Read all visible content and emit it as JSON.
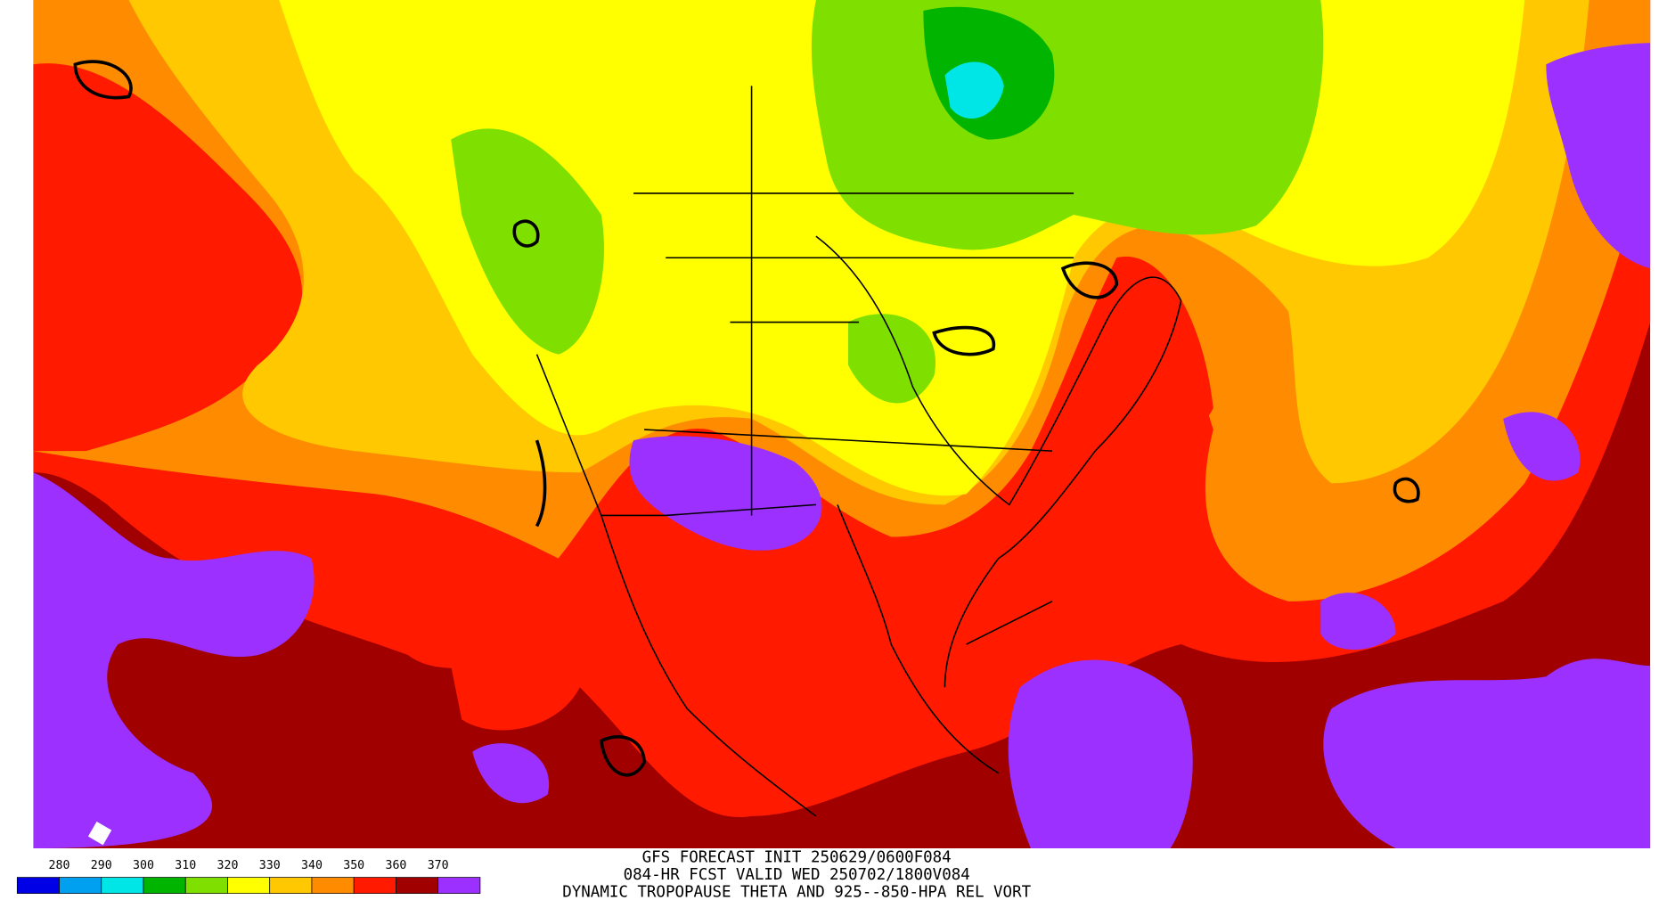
{
  "colorbar": {
    "labels": [
      280,
      290,
      300,
      310,
      320,
      330,
      340,
      350,
      360,
      370
    ],
    "colors": [
      "#0000e6",
      "#00a0f0",
      "#00e6e6",
      "#00b400",
      "#7fe000",
      "#ffff00",
      "#ffc800",
      "#ff8c00",
      "#ff1a00",
      "#a00000",
      "#9b30ff"
    ]
  },
  "title_lines": [
    "GFS FORECAST INIT 250629/0600F084",
    "084-HR FCST VALID WED 250702/1800V084",
    "DYNAMIC TROPOPAUSE THETA AND 925--850-HPA REL VORT"
  ]
}
